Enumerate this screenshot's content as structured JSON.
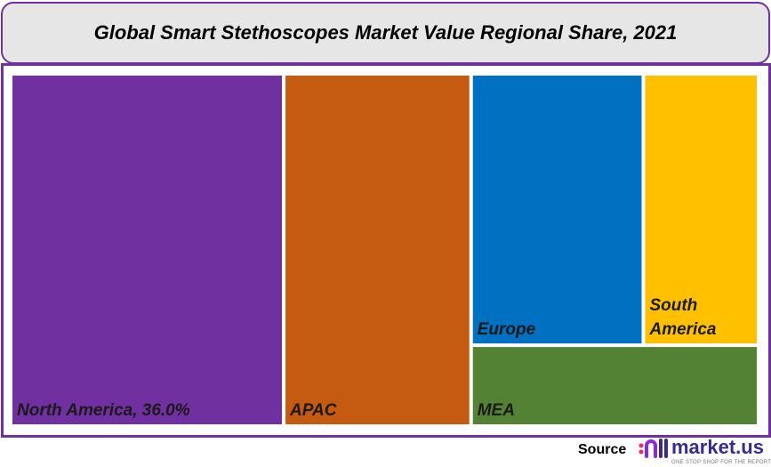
{
  "chart_data": {
    "type": "treemap",
    "title": "Global Smart Stethoscopes Market Value Regional Share, 2021",
    "items": [
      {
        "name": "North America",
        "label": "North America, 36.0%",
        "value": 36.0,
        "color": "#7030a0"
      },
      {
        "name": "APAC",
        "label": "APAC",
        "value": 24.7,
        "color": "#c55a11"
      },
      {
        "name": "Europe",
        "label": "Europe",
        "value": 17.5,
        "color": "#0070c0"
      },
      {
        "name": "South America",
        "label": "South America",
        "value": 11.7,
        "color": "#ffc000"
      },
      {
        "name": "MEA",
        "label": "MEA",
        "value": 8.7,
        "color": "#548235"
      }
    ]
  },
  "footer": {
    "source_label": "Source",
    "logo_text": "market.us",
    "logo_tagline": "ONE STOP SHOP FOR THE REPORTS"
  },
  "colors": {
    "frame": "#7030a0",
    "title_bg": "#e6e6e6"
  }
}
